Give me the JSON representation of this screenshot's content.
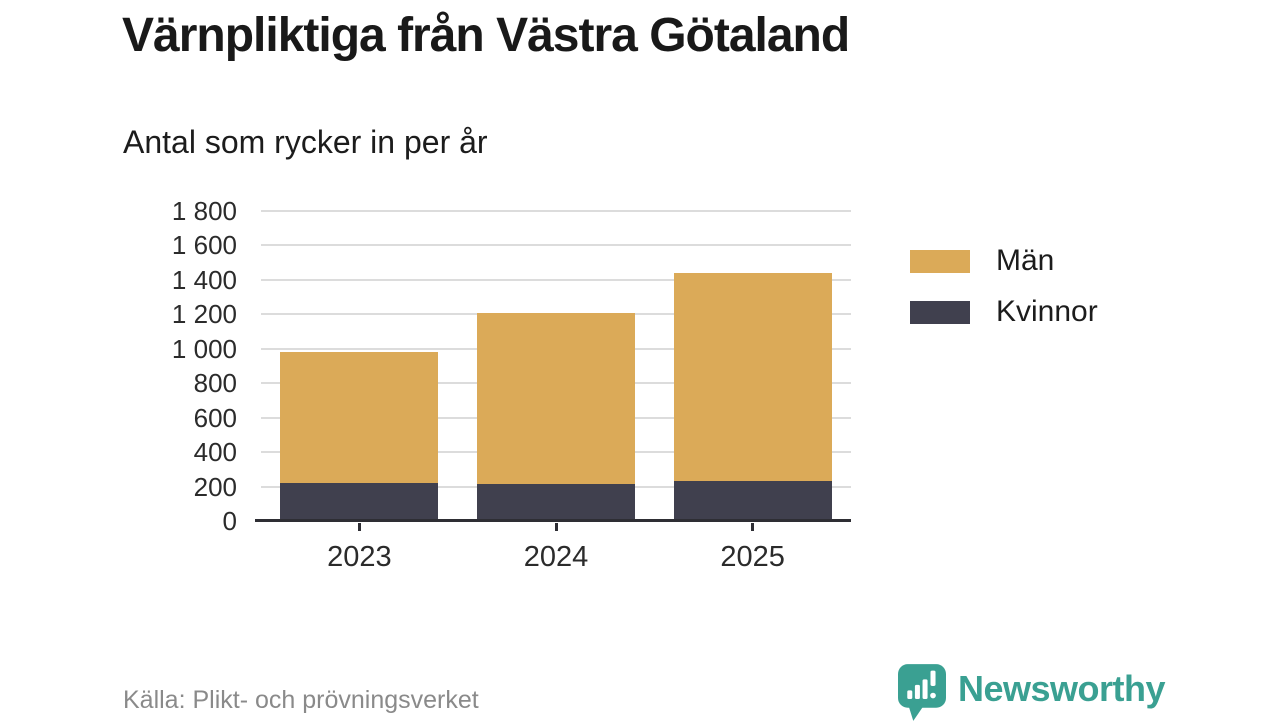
{
  "header": {
    "title": "Värnpliktiga från Västra Götaland",
    "subtitle": "Antal som rycker in per år"
  },
  "chart_data": {
    "type": "bar",
    "stacked": true,
    "title": "Värnpliktiga från Västra Götaland",
    "subtitle": "Antal som rycker in per år",
    "categories": [
      "2023",
      "2024",
      "2025"
    ],
    "series": [
      {
        "name": "Män",
        "color": "#dbaa58",
        "values": [
          760,
          995,
          1205
        ]
      },
      {
        "name": "Kvinnor",
        "color": "#40404e",
        "values": [
          220,
          215,
          235
        ]
      }
    ],
    "stack_bottom_to_top": [
      "Kvinnor",
      "Män"
    ],
    "totals": [
      980,
      1210,
      1440
    ],
    "ylim": [
      0,
      1800
    ],
    "grid": "horizontal",
    "legend_position": "right",
    "yticks": [
      {
        "value": 0,
        "label": "0"
      },
      {
        "value": 200,
        "label": "200"
      },
      {
        "value": 400,
        "label": "400"
      },
      {
        "value": 600,
        "label": "600"
      },
      {
        "value": 800,
        "label": "800"
      },
      {
        "value": 1000,
        "label": "1 000"
      },
      {
        "value": 1200,
        "label": "1 200"
      },
      {
        "value": 1400,
        "label": "1 400"
      },
      {
        "value": 1600,
        "label": "1 600"
      },
      {
        "value": 1800,
        "label": "1 800"
      }
    ]
  },
  "legend": {
    "items": [
      {
        "label": "Män",
        "color": "#dbaa58"
      },
      {
        "label": "Kvinnor",
        "color": "#40404e"
      }
    ]
  },
  "footer": {
    "source": "Källa: Plikt- och prövningsverket",
    "brand_name": "Newsworthy",
    "brand_color": "#3aa092"
  },
  "colors": {
    "men": "#dbaa58",
    "women": "#40404e",
    "gridline": "#dcdcdc",
    "axis": "#2e2e34",
    "text": "#1c1c1c",
    "muted_text": "#8a8a8a",
    "brand_teal": "#3aa092"
  }
}
